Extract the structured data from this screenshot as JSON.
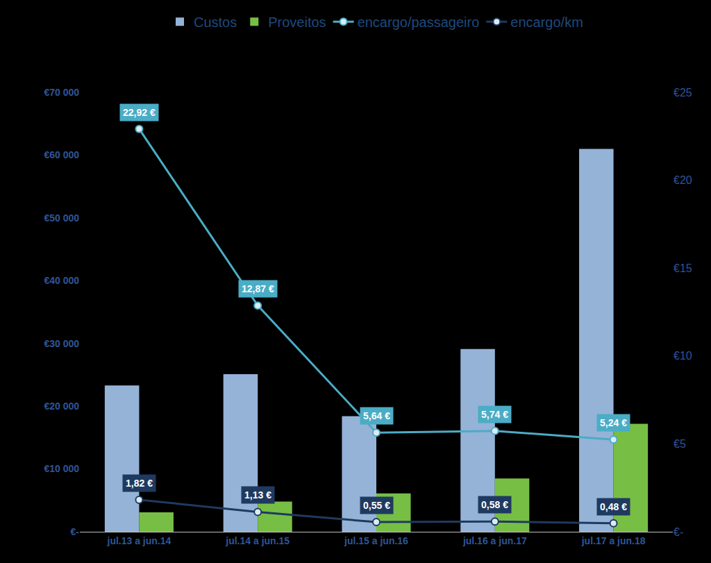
{
  "chart_data": {
    "type": "bar",
    "categories": [
      "jul.13 a jun.14",
      "jul.14 a jun.15",
      "jul.15 a jun.16",
      "jul.16 a jun.17",
      "jul.17 a jun.18"
    ],
    "series": [
      {
        "name": "Custos",
        "type": "bar",
        "color": "#95B3D7",
        "data_labels": false,
        "values": [
          23300,
          25100,
          18400,
          29100,
          61000
        ]
      },
      {
        "name": "Proveitos",
        "type": "bar",
        "color": "#77BE45",
        "data_labels": false,
        "values": [
          3100,
          4800,
          6100,
          8500,
          17200
        ]
      },
      {
        "name": "encargo/passageiro",
        "type": "line",
        "axis": "y2",
        "color": "#4BACC6",
        "marker": "circle",
        "data_labels": true,
        "values": [
          22.92,
          12.87,
          5.64,
          5.74,
          5.24
        ],
        "value_labels": [
          "22,92 €",
          "12,87 €",
          "5,64 €",
          "5,74 €",
          "5,24 €"
        ]
      },
      {
        "name": "encargo/km",
        "type": "line",
        "axis": "y2",
        "color": "#1F3A60",
        "marker": "circle",
        "data_labels": true,
        "values": [
          1.82,
          1.13,
          0.55,
          0.58,
          0.48
        ],
        "value_labels": [
          "1,82 €",
          "1,13 €",
          "0,55 €",
          "0,58 €",
          "0,48 €"
        ]
      }
    ],
    "ylim": [
      0,
      70000
    ],
    "yticks": [
      {
        "value": 0,
        "label": "€-"
      },
      {
        "value": 10000,
        "label": "€10 000"
      },
      {
        "value": 20000,
        "label": "€20 000"
      },
      {
        "value": 30000,
        "label": "€30 000"
      },
      {
        "value": 40000,
        "label": "€40 000"
      },
      {
        "value": 50000,
        "label": "€50 000"
      },
      {
        "value": 60000,
        "label": "€60 000"
      },
      {
        "value": 70000,
        "label": "€70 000"
      }
    ],
    "y2lim": [
      0,
      25
    ],
    "y2ticks": [
      {
        "value": 0,
        "label": "€-"
      },
      {
        "value": 5,
        "label": "€5"
      },
      {
        "value": 10,
        "label": "€10"
      },
      {
        "value": 15,
        "label": "€15"
      },
      {
        "value": 20,
        "label": "€20"
      },
      {
        "value": 25,
        "label": "€25"
      }
    ],
    "grid": false,
    "legend": "top"
  }
}
